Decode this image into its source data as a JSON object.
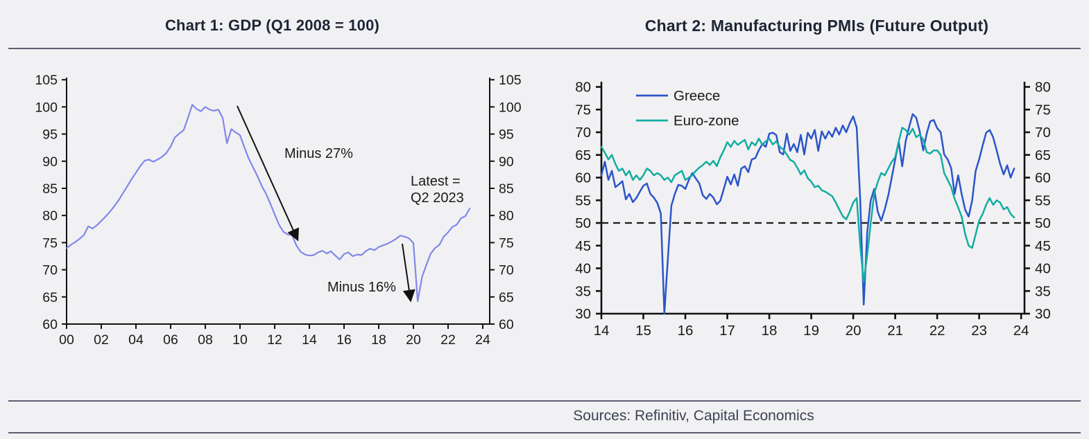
{
  "footer": {
    "sources": "Sources: Refinitiv, Capital Economics"
  },
  "chart_data": [
    {
      "type": "line",
      "title": "Chart 1: GDP (Q1 2008 = 100)",
      "xlabel": "",
      "ylabel": "",
      "x_start": 2000,
      "x_step": 0.25,
      "xlim": [
        2000,
        2024.4
      ],
      "ylim": [
        60,
        105
      ],
      "dual_y_axis": true,
      "grid": false,
      "y_ticks": [
        60,
        65,
        70,
        75,
        80,
        85,
        90,
        95,
        100,
        105
      ],
      "x_ticks": [
        {
          "label": "00",
          "value": 2000
        },
        {
          "label": "02",
          "value": 2002
        },
        {
          "label": "04",
          "value": 2004
        },
        {
          "label": "06",
          "value": 2006
        },
        {
          "label": "08",
          "value": 2008
        },
        {
          "label": "10",
          "value": 2010
        },
        {
          "label": "12",
          "value": 2012
        },
        {
          "label": "14",
          "value": 2014
        },
        {
          "label": "16",
          "value": 2016
        },
        {
          "label": "18",
          "value": 2018
        },
        {
          "label": "20",
          "value": 2020
        },
        {
          "label": "22",
          "value": 2022
        },
        {
          "label": "24",
          "value": 2024
        }
      ],
      "series": [
        {
          "name": "GDP (Q1 2008 = 100)",
          "color": "#8187e9",
          "values": [
            74.0,
            74.6,
            75.1,
            75.7,
            76.4,
            78.0,
            77.6,
            78.2,
            79.0,
            79.8,
            80.7,
            81.7,
            82.8,
            84.1,
            85.4,
            86.7,
            87.9,
            89.1,
            90.1,
            90.3,
            89.9,
            90.3,
            90.8,
            91.5,
            92.7,
            94.4,
            95.1,
            95.7,
            98.0,
            100.4,
            99.6,
            99.2,
            100.0,
            99.5,
            99.3,
            99.5,
            98.0,
            93.3,
            95.9,
            95.3,
            94.8,
            92.6,
            90.5,
            88.9,
            87.3,
            85.5,
            84.0,
            82.2,
            80.2,
            78.3,
            77.0,
            76.5,
            76.4,
            74.5,
            73.3,
            72.8,
            72.6,
            72.7,
            73.2,
            73.5,
            73.0,
            73.4,
            72.6,
            71.9,
            72.9,
            73.2,
            72.5,
            72.8,
            72.7,
            73.4,
            73.9,
            73.6,
            74.2,
            74.5,
            74.8,
            75.2,
            75.7,
            76.3,
            76.1,
            75.8,
            74.9,
            64.2,
            68.7,
            70.9,
            73.0,
            74.0,
            74.6,
            76.1,
            76.9,
            77.9,
            78.3,
            79.5,
            79.9,
            81.3
          ]
        }
      ],
      "annotations": [
        {
          "id": "minus27",
          "text": "Minus 27%"
        },
        {
          "id": "minus16",
          "text": "Minus 16%"
        },
        {
          "id": "latest",
          "lines": [
            "Latest =",
            "Q2 2023"
          ]
        }
      ]
    },
    {
      "type": "line",
      "title": "Chart 2: Manufacturing PMIs (Future Output)",
      "xlabel": "",
      "ylabel": "",
      "x_start": 2014,
      "x_step": 0.0833333,
      "xlim": [
        2014,
        2024.08
      ],
      "ylim": [
        30,
        80
      ],
      "dual_y_axis": true,
      "grid": false,
      "ref_line": 50,
      "legend_position": "top-left-inside",
      "y_ticks": [
        30,
        35,
        40,
        45,
        50,
        55,
        60,
        65,
        70,
        75,
        80
      ],
      "x_ticks": [
        {
          "label": "14",
          "value": 2014
        },
        {
          "label": "15",
          "value": 2015
        },
        {
          "label": "16",
          "value": 2016
        },
        {
          "label": "17",
          "value": 2017
        },
        {
          "label": "18",
          "value": 2018
        },
        {
          "label": "19",
          "value": 2019
        },
        {
          "label": "20",
          "value": 2020
        },
        {
          "label": "21",
          "value": 2021
        },
        {
          "label": "22",
          "value": 2022
        },
        {
          "label": "23",
          "value": 2023
        },
        {
          "label": "24",
          "value": 2024
        }
      ],
      "series": [
        {
          "name": "Greece",
          "color": "#2b55c8",
          "values": [
            60.5,
            63.5,
            59.5,
            61.5,
            57.9,
            58.5,
            59.2,
            55.2,
            56.4,
            54.6,
            55.5,
            56.9,
            58.2,
            58.7,
            56.4,
            55.6,
            54.4,
            52.1,
            30.0,
            42.0,
            53.8,
            56.4,
            58.4,
            58.2,
            57.5,
            59.5,
            61.0,
            59.8,
            58.7,
            56.1,
            55.3,
            56.4,
            55.6,
            54.1,
            54.9,
            57.5,
            60.2,
            58.5,
            60.7,
            58.2,
            62.0,
            62.5,
            61.2,
            64.0,
            64.3,
            66.0,
            67.4,
            66.8,
            69.7,
            69.9,
            69.4,
            65.6,
            65.1,
            69.7,
            65.9,
            67.4,
            65.6,
            69.4,
            65.1,
            69.9,
            68.6,
            70.5,
            65.9,
            70.2,
            68.6,
            70.2,
            69.0,
            71.0,
            69.5,
            71.5,
            70.0,
            72.0,
            73.5,
            71.0,
            55.0,
            32.0,
            48.0,
            55.0,
            57.5,
            52.5,
            50.5,
            53.0,
            56.0,
            60.0,
            64.0,
            67.9,
            62.5,
            68.0,
            71.2,
            74.0,
            73.2,
            70.2,
            66.0,
            69.7,
            72.4,
            72.7,
            70.9,
            70.0,
            65.1,
            64.0,
            62.1,
            56.4,
            60.5,
            56.4,
            52.9,
            51.4,
            55.0,
            61.5,
            64.0,
            67.1,
            69.9,
            70.5,
            68.9,
            66.0,
            63.0,
            60.7,
            62.7,
            60.0,
            62.0
          ]
        },
        {
          "name": "Euro-zone",
          "color": "#12ada0",
          "values": [
            66.8,
            65.5,
            64.0,
            65.0,
            63.0,
            61.5,
            62.0,
            60.5,
            61.5,
            59.5,
            60.5,
            59.5,
            60.5,
            62.0,
            61.5,
            60.5,
            61.0,
            60.5,
            59.5,
            60.0,
            59.0,
            60.5,
            61.0,
            61.5,
            59.5,
            60.0,
            60.5,
            61.5,
            62.2,
            62.8,
            63.5,
            62.8,
            63.7,
            62.5,
            64.5,
            66.0,
            67.8,
            66.8,
            68.1,
            67.2,
            67.8,
            68.3,
            66.2,
            67.8,
            67.1,
            68.6,
            67.3,
            68.0,
            68.6,
            67.3,
            68.0,
            66.8,
            66.2,
            65.1,
            63.9,
            63.5,
            62.2,
            60.7,
            61.6,
            59.9,
            59.1,
            57.9,
            58.2,
            57.2,
            56.9,
            56.4,
            55.9,
            54.5,
            53.0,
            51.5,
            50.8,
            52.5,
            54.5,
            55.5,
            45.0,
            37.0,
            43.0,
            50.0,
            56.5,
            59.0,
            61.0,
            60.5,
            62.0,
            63.5,
            64.5,
            68.0,
            71.0,
            70.5,
            69.5,
            70.8,
            68.9,
            69.5,
            68.4,
            65.6,
            65.3,
            66.0,
            66.0,
            65.0,
            61.0,
            59.5,
            57.9,
            55.3,
            53.4,
            51.4,
            47.5,
            45.0,
            44.5,
            47.5,
            50.5,
            52.0,
            54.0,
            55.5,
            54.0,
            55.0,
            54.5,
            53.0,
            53.5,
            52.0,
            51.2
          ]
        }
      ]
    }
  ]
}
